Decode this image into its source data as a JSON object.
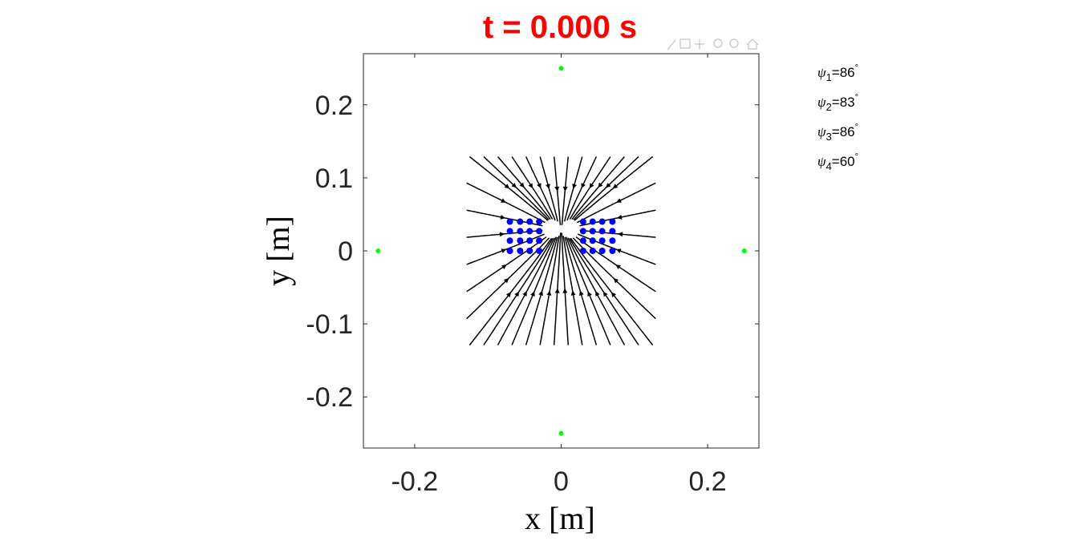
{
  "chart_data": {
    "type": "streamline",
    "title": "t = 0.000 s",
    "title_color": "#ff0000",
    "xlabel": "x [m]",
    "ylabel": "y [m]",
    "xlim": [
      -0.27,
      0.27
    ],
    "ylim": [
      -0.27,
      0.27
    ],
    "xticks": [
      -0.2,
      0,
      0.2
    ],
    "xtick_labels": [
      "-0.2",
      "0",
      "0.2"
    ],
    "yticks": [
      0.2,
      0.1,
      0,
      -0.1,
      -0.2
    ],
    "ytick_labels": [
      "0.2",
      "0.1",
      "0",
      "-0.1",
      "-0.2"
    ],
    "grid": false,
    "field_region": {
      "x": [
        -0.13,
        0.13
      ],
      "y": [
        -0.13,
        0.13
      ]
    },
    "streamline_color": "#000000",
    "source_points": {
      "color": "#00ff00",
      "points": [
        [
          0,
          0.25
        ],
        [
          -0.25,
          0
        ],
        [
          0.25,
          0
        ],
        [
          0,
          -0.25
        ]
      ]
    },
    "particles": {
      "color": "#0000ff",
      "points": [
        [
          -0.07,
          0.04
        ],
        [
          -0.056,
          0.04
        ],
        [
          -0.043,
          0.04
        ],
        [
          -0.03,
          0.04
        ],
        [
          -0.07,
          0.027
        ],
        [
          -0.056,
          0.027
        ],
        [
          -0.043,
          0.027
        ],
        [
          -0.03,
          0.027
        ],
        [
          -0.07,
          0.014
        ],
        [
          -0.056,
          0.014
        ],
        [
          -0.043,
          0.014
        ],
        [
          -0.03,
          0.014
        ],
        [
          -0.07,
          0.0
        ],
        [
          -0.056,
          0.0
        ],
        [
          -0.043,
          0.0
        ],
        [
          -0.03,
          0.0
        ],
        [
          0.03,
          0.04
        ],
        [
          0.043,
          0.04
        ],
        [
          0.056,
          0.04
        ],
        [
          0.07,
          0.04
        ],
        [
          0.03,
          0.027
        ],
        [
          0.043,
          0.027
        ],
        [
          0.056,
          0.027
        ],
        [
          0.07,
          0.027
        ],
        [
          0.03,
          0.014
        ],
        [
          0.043,
          0.014
        ],
        [
          0.056,
          0.014
        ],
        [
          0.07,
          0.014
        ],
        [
          0.03,
          0.0
        ],
        [
          0.043,
          0.0
        ],
        [
          0.056,
          0.0
        ],
        [
          0.07,
          0.0
        ]
      ]
    },
    "annotations": [
      {
        "symbol": "ψ",
        "index": "1",
        "value": "=86"
      },
      {
        "symbol": "ψ",
        "index": "2",
        "value": "=83"
      },
      {
        "symbol": "ψ",
        "index": "3",
        "value": "=86"
      },
      {
        "symbol": "ψ",
        "index": "4",
        "value": "=60"
      }
    ],
    "annotation_unit": "°"
  },
  "toolbar": {
    "icons": [
      "brush-icon",
      "datatip-icon",
      "pan-icon",
      "zoom-in-icon",
      "zoom-out-icon",
      "home-icon"
    ]
  }
}
